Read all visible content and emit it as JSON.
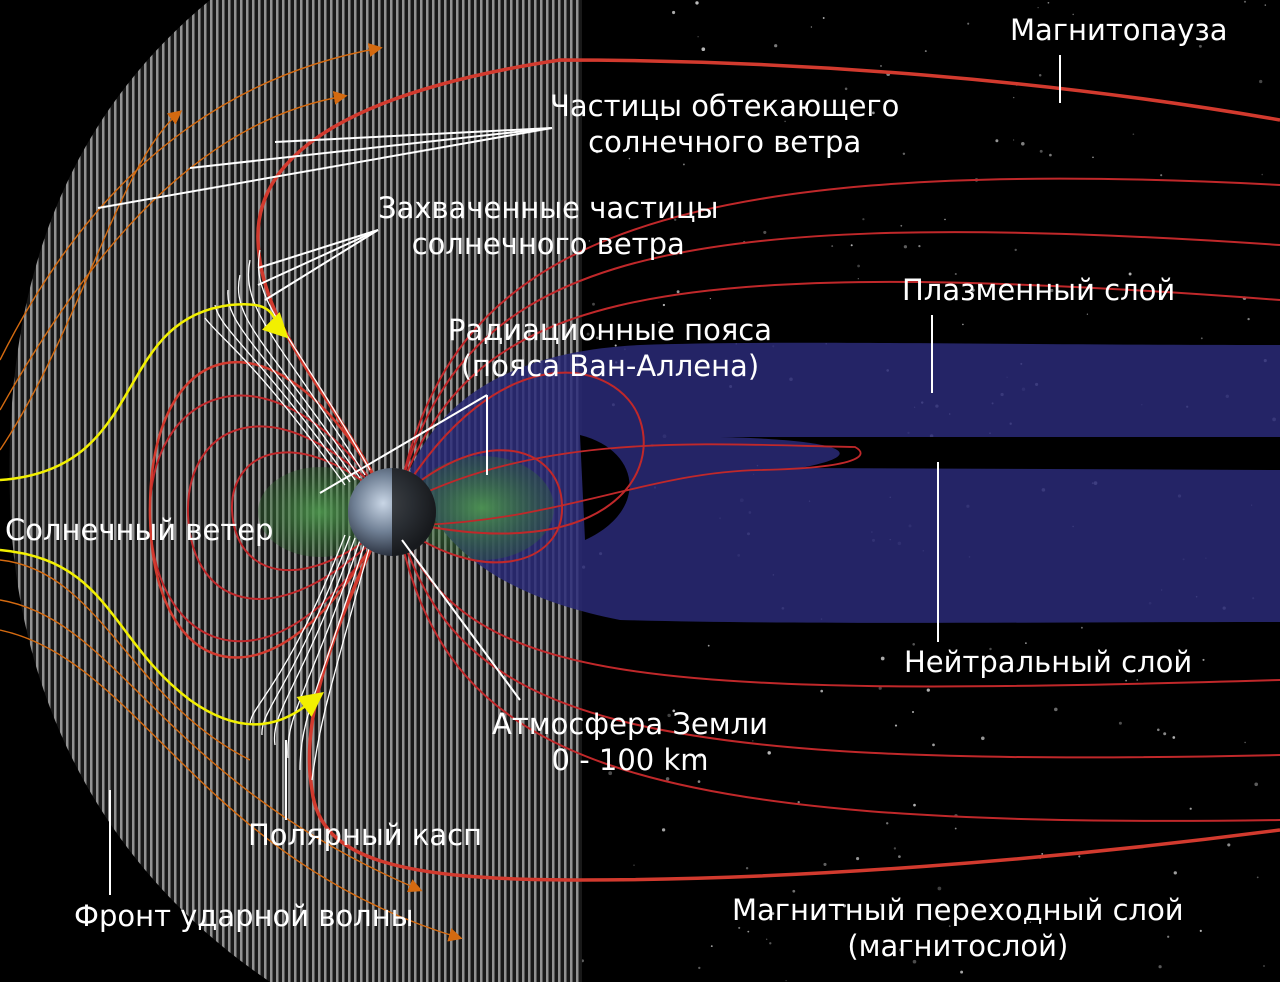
{
  "labels": {
    "magnetopause": "Магнитопауза",
    "flowing_particles": [
      "Частицы обтекающего",
      "солнечного ветра"
    ],
    "captured_particles": [
      "Захваченные  частицы",
      "солнечного ветра"
    ],
    "plasma_sheet": "Плазменный слой",
    "radiation_belts": [
      "Радиационные пояса",
      "(пояса Ван-Аллена)"
    ],
    "solar_wind": "Солнечный ветер",
    "neutral_sheet": "Нейтральный слой",
    "atmosphere": [
      "Атмосфера Земли",
      "0 - 100 km"
    ],
    "polar_cusp": "Полярный касп",
    "bow_shock": "Фронт ударной волны",
    "magnetosheath": [
      "Магнитный переходный слой",
      "(магнитослой)"
    ]
  },
  "colors": {
    "space": "#000000",
    "field_lines": "#c0282a",
    "solar_wind_lines": "#d46a10",
    "solar_wind_highlight": "#f2f000",
    "plasma_sheet": "#2a2a78",
    "radiation_belts": "#3d8a3d",
    "shock_region_stripes": "#8a8a8a",
    "leaders": "#ffffff"
  }
}
